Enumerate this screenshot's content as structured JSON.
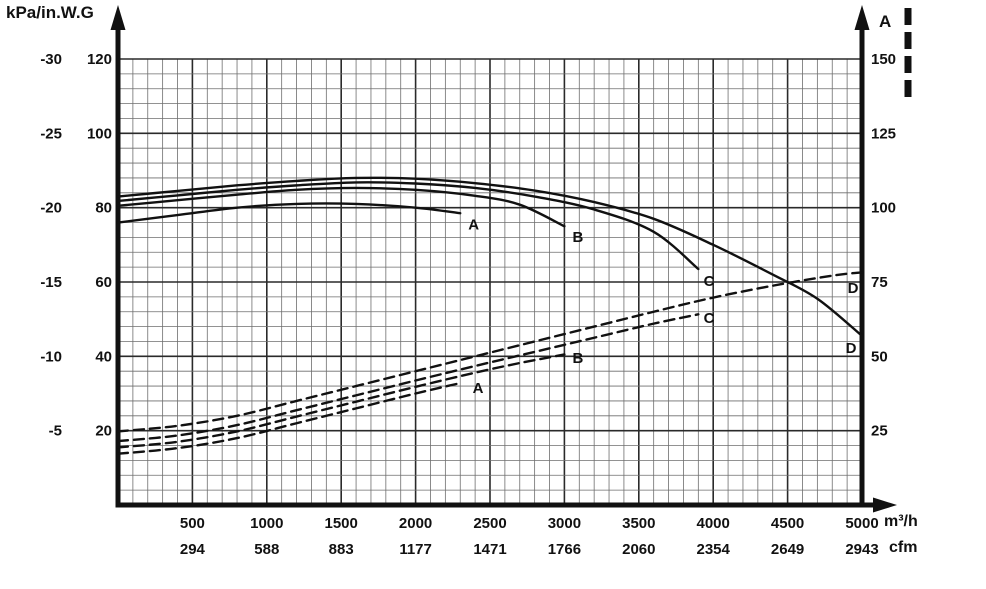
{
  "labels": {
    "left_axis_title": "kPa/in.W.G",
    "right_axis_legend": "A",
    "x_unit_primary": "m³/h",
    "x_unit_secondary": "cfm"
  },
  "chart_data": {
    "type": "line",
    "x_axis": {
      "label_primary": "m³/h",
      "label_secondary": "cfm",
      "range": [
        0,
        5000
      ],
      "ticks": [
        {
          "m3h": "500",
          "cfm": "294"
        },
        {
          "m3h": "1000",
          "cfm": "588"
        },
        {
          "m3h": "1500",
          "cfm": "883"
        },
        {
          "m3h": "2000",
          "cfm": "1177"
        },
        {
          "m3h": "2500",
          "cfm": "1471"
        },
        {
          "m3h": "3000",
          "cfm": "1766"
        },
        {
          "m3h": "3500",
          "cfm": "2060"
        },
        {
          "m3h": "4000",
          "cfm": "2354"
        },
        {
          "m3h": "4500",
          "cfm": "2649"
        },
        {
          "m3h": "5000",
          "cfm": "2943"
        }
      ]
    },
    "y_axis_left": {
      "title": "kPa/in.W.G",
      "range_inwg": [
        0,
        120
      ],
      "ticks": [
        {
          "kpa": "-30",
          "inwg": 120
        },
        {
          "kpa": "-25",
          "inwg": 100
        },
        {
          "kpa": "-20",
          "inwg": 80
        },
        {
          "kpa": "-15",
          "inwg": 60
        },
        {
          "kpa": "-10",
          "inwg": 40
        },
        {
          "kpa": "-5",
          "inwg": 20
        }
      ]
    },
    "y_axis_right": {
      "legend": "A",
      "ticks": [
        "150",
        "125",
        "100",
        "75",
        "50",
        "25"
      ]
    },
    "grid": {
      "minor_cols": 50,
      "minor_rows": 30,
      "major_every": 5
    },
    "colors": {
      "curve": "#111111",
      "grid_minor": "#6e6e6e",
      "grid_major": "#2a2a2a",
      "axis": "#111111"
    },
    "series": [
      {
        "name": "A",
        "style": "solid",
        "points": [
          [
            0,
            76
          ],
          [
            400,
            78
          ],
          [
            800,
            80
          ],
          [
            1200,
            81
          ],
          [
            1600,
            81
          ],
          [
            2000,
            80
          ],
          [
            2300,
            78.5
          ]
        ]
      },
      {
        "name": "B",
        "style": "solid",
        "points": [
          [
            0,
            80.5
          ],
          [
            400,
            82
          ],
          [
            800,
            83.5
          ],
          [
            1200,
            84.8
          ],
          [
            1600,
            85.3
          ],
          [
            2000,
            84.8
          ],
          [
            2400,
            83.2
          ],
          [
            2700,
            80.8
          ],
          [
            3000,
            75
          ]
        ]
      },
      {
        "name": "C",
        "style": "solid",
        "points": [
          [
            0,
            81.8
          ],
          [
            400,
            83.3
          ],
          [
            800,
            84.8
          ],
          [
            1200,
            86
          ],
          [
            1600,
            86.8
          ],
          [
            2000,
            86.5
          ],
          [
            2400,
            85.3
          ],
          [
            2800,
            83
          ],
          [
            3200,
            79.5
          ],
          [
            3600,
            73.5
          ],
          [
            3900,
            63.5
          ]
        ]
      },
      {
        "name": "D",
        "style": "solid",
        "points": [
          [
            0,
            83
          ],
          [
            400,
            84.5
          ],
          [
            800,
            86
          ],
          [
            1200,
            87.2
          ],
          [
            1600,
            88
          ],
          [
            2000,
            87.8
          ],
          [
            2400,
            86.6
          ],
          [
            2800,
            84.6
          ],
          [
            3200,
            81.5
          ],
          [
            3600,
            77
          ],
          [
            4000,
            70
          ],
          [
            4400,
            62
          ],
          [
            4700,
            55.5
          ],
          [
            5000,
            45.5
          ]
        ]
      },
      {
        "name": "A",
        "style": "dashed",
        "points": [
          [
            0,
            13.8
          ],
          [
            400,
            15.3
          ],
          [
            800,
            18
          ],
          [
            1200,
            22
          ],
          [
            1600,
            26
          ],
          [
            2000,
            30
          ],
          [
            2300,
            32.8
          ]
        ]
      },
      {
        "name": "B",
        "style": "dashed",
        "points": [
          [
            0,
            15.5
          ],
          [
            400,
            17
          ],
          [
            800,
            19.8
          ],
          [
            1200,
            23.8
          ],
          [
            1600,
            27.8
          ],
          [
            2000,
            31.8
          ],
          [
            2400,
            35.6
          ],
          [
            2700,
            38.2
          ],
          [
            3000,
            40.5
          ]
        ]
      },
      {
        "name": "C",
        "style": "dashed",
        "points": [
          [
            0,
            17.2
          ],
          [
            400,
            18.7
          ],
          [
            800,
            21.5
          ],
          [
            1200,
            25.5
          ],
          [
            1600,
            29.5
          ],
          [
            2000,
            33.5
          ],
          [
            2400,
            37.4
          ],
          [
            2800,
            41.2
          ],
          [
            3200,
            45
          ],
          [
            3600,
            48.8
          ],
          [
            3900,
            51.3
          ]
        ]
      },
      {
        "name": "D",
        "style": "dashed",
        "points": [
          [
            0,
            19.8
          ],
          [
            400,
            21.3
          ],
          [
            800,
            24
          ],
          [
            1200,
            28
          ],
          [
            1600,
            32
          ],
          [
            2000,
            36
          ],
          [
            2400,
            40
          ],
          [
            2800,
            44
          ],
          [
            3200,
            48
          ],
          [
            3600,
            52
          ],
          [
            4000,
            55.8
          ],
          [
            4400,
            59
          ],
          [
            4800,
            61.7
          ],
          [
            5000,
            62.6
          ]
        ]
      }
    ],
    "curve_labels": [
      {
        "text": "A",
        "style": "solid",
        "flow": 2390,
        "inwg": 75.5
      },
      {
        "text": "B",
        "style": "solid",
        "flow": 3091,
        "inwg": 72.1
      },
      {
        "text": "C",
        "style": "solid",
        "flow": 3972,
        "inwg": 60.3
      },
      {
        "text": "D",
        "style": "solid",
        "flow": 4926,
        "inwg": 42.2
      },
      {
        "text": "A",
        "style": "dashed",
        "flow": 2420,
        "inwg": 31.5
      },
      {
        "text": "B",
        "style": "dashed",
        "flow": 3091,
        "inwg": 39.6
      },
      {
        "text": "C",
        "style": "dashed",
        "flow": 3972,
        "inwg": 50.3
      },
      {
        "text": "D",
        "style": "dashed",
        "flow": 4940,
        "inwg": 58.4
      }
    ]
  }
}
